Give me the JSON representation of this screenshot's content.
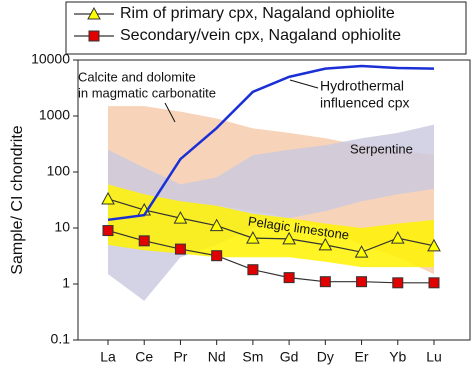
{
  "chart_data": {
    "type": "line",
    "log_y": true,
    "y_label": "Sample/ CI chondrite",
    "categories": [
      "La",
      "Ce",
      "Pr",
      "Nd",
      "Sm",
      "Gd",
      "Dy",
      "Er",
      "Yb",
      "Lu"
    ],
    "ylim": [
      0.1,
      10000
    ],
    "yticks": [
      0.1,
      1,
      10,
      100,
      1000,
      10000
    ],
    "bands": [
      {
        "label": [
          "Calcite and dolomite",
          "in magmatic carbonatite"
        ],
        "color": "#f5c9a8",
        "lower": [
          60,
          40,
          30,
          25,
          20,
          15,
          10,
          5,
          3,
          1.5
        ],
        "upper": [
          1500,
          1500,
          1200,
          900,
          600,
          500,
          400,
          300,
          250,
          200
        ]
      },
      {
        "label": [
          "Serpentine"
        ],
        "color": "#c9c8e0",
        "lower": [
          1.5,
          0.5,
          3,
          5,
          10,
          15,
          20,
          30,
          40,
          50
        ],
        "upper": [
          250,
          120,
          60,
          80,
          200,
          250,
          300,
          400,
          500,
          700
        ]
      },
      {
        "label": [
          "Pelagic limestone"
        ],
        "color": "#fff200",
        "lower": [
          5,
          4,
          3.5,
          3,
          3,
          3,
          2.5,
          2,
          2,
          2
        ],
        "upper": [
          60,
          40,
          30,
          25,
          18,
          15,
          12,
          10,
          12,
          14
        ]
      }
    ],
    "series": [
      {
        "name": "Rim of primary cpx, Nagaland ophiolite",
        "color": "#ffff00",
        "marker": "triangle",
        "values": [
          33,
          21,
          15,
          11,
          6.6,
          6.4,
          5,
          3.7,
          6.6,
          4.8
        ]
      },
      {
        "name": "Secondary/vein cpx, Nagaland ophiolite",
        "color": "#e00000",
        "marker": "square",
        "values": [
          9,
          5.9,
          4.2,
          3.2,
          1.8,
          1.3,
          1.1,
          1.1,
          1.05,
          1.05
        ]
      },
      {
        "label": [
          "Hydrothermal",
          "influenced cpx"
        ],
        "color": "#1a2fd6",
        "marker": "none",
        "values": [
          14,
          17,
          170,
          610,
          2700,
          5000,
          7000,
          7800,
          7200,
          7000
        ]
      }
    ]
  }
}
